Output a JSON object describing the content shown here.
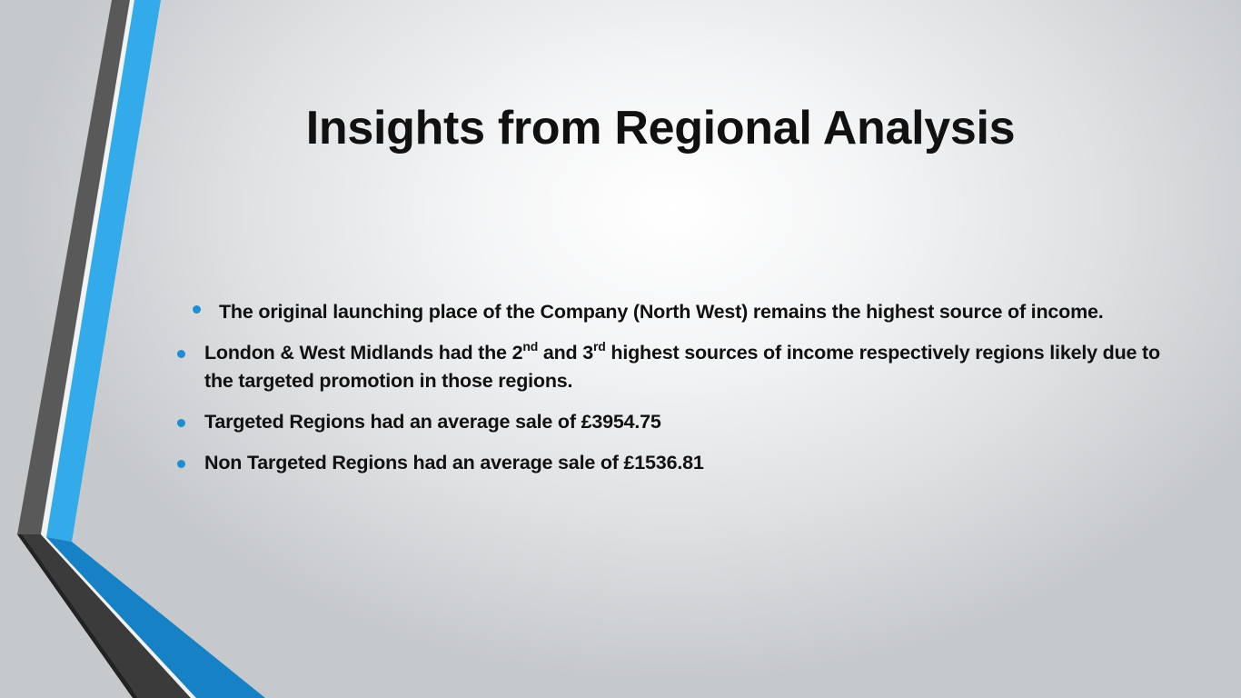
{
  "slide": {
    "title": "Insights from Regional Analysis",
    "bullets": {
      "b1": "The original launching place of the Company (North West) remains the highest source of income.",
      "b2": {
        "part1": "London & West Midlands had the 2",
        "sup1": "nd",
        "part2": " and 3",
        "sup2": "rd",
        "part3": " highest sources of income respectively regions likely due to the targeted promotion in those regions."
      },
      "b3": "Targeted Regions had an average sale of £3954.75",
      "b4": "Non Targeted Regions had an average sale of £1536.81"
    }
  },
  "colors": {
    "accent_blue": "#30a8e8",
    "accent_blue_dark": "#1681c4",
    "stripe_gray": "#595959",
    "stripe_dark": "#3b3b3b",
    "bullet_dot": "#1f8ed0"
  }
}
